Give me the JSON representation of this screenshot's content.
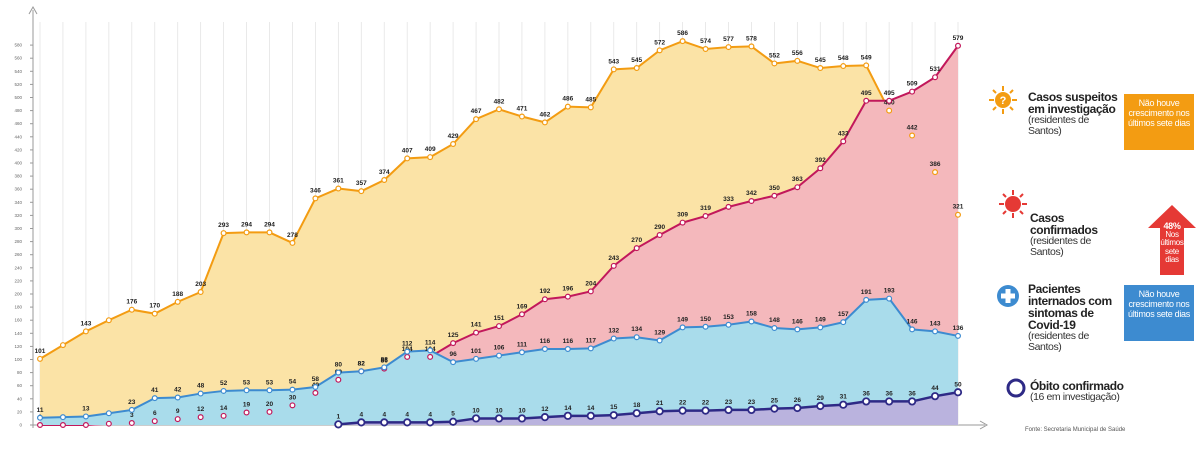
{
  "chart_data": {
    "type": "area",
    "categories": [
      null,
      null,
      null,
      null,
      null,
      null,
      null,
      null,
      null,
      null,
      null,
      null,
      null,
      null,
      null,
      null,
      null,
      null,
      null,
      null,
      null,
      null,
      null,
      null,
      null,
      null,
      null,
      null,
      null,
      null,
      null,
      null,
      null,
      null,
      null,
      null,
      null,
      null,
      null,
      null,
      null
    ],
    "ylim": [
      0,
      600
    ],
    "yticks": [
      0,
      20,
      40,
      60,
      80,
      100,
      120,
      140,
      160,
      180,
      200,
      220,
      240,
      260,
      280,
      300,
      320,
      340,
      360,
      380,
      400,
      420,
      440,
      460,
      480,
      500,
      520,
      540,
      560,
      580
    ],
    "series": [
      {
        "name": "Casos suspeitos em investigação",
        "note": "(residentes de Santos)",
        "badge": "Não houve crescimento nos últimos sete dias",
        "color": "#f39c12",
        "fill": "#fbe3a6",
        "values": [
          101,
          122,
          143,
          160,
          176,
          170,
          188,
          203,
          293,
          294,
          294,
          278,
          346,
          361,
          357,
          374,
          407,
          409,
          429,
          467,
          482,
          471,
          462,
          486,
          485,
          543,
          545,
          572,
          586,
          574,
          577,
          578,
          552,
          556,
          545,
          548,
          549,
          480,
          442,
          386,
          321
        ],
        "value_labels": [
          "101",
          null,
          "143",
          null,
          "176",
          "170",
          "188",
          "203",
          "293",
          "294",
          "294",
          "278",
          "346",
          "361",
          "357",
          "374",
          "407",
          "409",
          "429",
          "467",
          "482",
          "471",
          "462",
          "486",
          "485",
          "543",
          "545",
          "572",
          "586",
          "574",
          "577",
          "578",
          "552",
          "556",
          "545",
          "548",
          "549",
          "480",
          "442",
          "386",
          "321"
        ]
      },
      {
        "name": "Casos confirmados",
        "note": "(residentes de Santos)",
        "badge_value": "48%",
        "badge": "Nos últimos sete dias",
        "color": "#c2185b",
        "fill": "#f4b8bc",
        "values": [
          0,
          0,
          0,
          2,
          3,
          6,
          9,
          12,
          14,
          19,
          20,
          30,
          49,
          69,
          82,
          86,
          104,
          104,
          125,
          141,
          151,
          169,
          192,
          196,
          204,
          243,
          270,
          290,
          309,
          319,
          333,
          342,
          350,
          363,
          392,
          433,
          495,
          495,
          509,
          531,
          579
        ],
        "value_labels": [
          "0",
          null,
          "0",
          null,
          "3",
          "6",
          "9",
          "12",
          "14",
          "19",
          "20",
          "30",
          "49",
          "69",
          "82",
          "86",
          "104",
          "104",
          "125",
          "141",
          "151",
          "169",
          "192",
          "196",
          "204",
          "243",
          "270",
          "290",
          "309",
          "319",
          "333",
          "342",
          "350",
          "363",
          "392",
          "433",
          "495",
          "495",
          "509",
          "531",
          "579"
        ]
      },
      {
        "name": "Pacientes internados com sintomas de Covid-19",
        "note": "(residentes de Santos)",
        "badge": "Não houve crescimento nos últimos sete dias",
        "color": "#3d8bd0",
        "fill": "#a9dceb",
        "values": [
          11,
          12,
          13,
          18,
          23,
          41,
          42,
          48,
          52,
          53,
          53,
          54,
          58,
          80,
          82,
          88,
          112,
          114,
          96,
          101,
          106,
          111,
          116,
          116,
          117,
          132,
          134,
          129,
          149,
          150,
          153,
          158,
          148,
          146,
          149,
          157,
          191,
          193,
          146,
          143,
          136
        ],
        "value_labels": [
          "11",
          null,
          "13",
          null,
          "23",
          "41",
          "42",
          "48",
          "52",
          "53",
          "53",
          "54",
          "58",
          "80",
          "82",
          "88",
          "112",
          "114",
          "96",
          "101",
          "106",
          "111",
          "116",
          "116",
          "117",
          "132",
          "134",
          "129",
          "149",
          "150",
          "153",
          "158",
          "148",
          "146",
          "149",
          "157",
          "191",
          "193",
          "146",
          "143",
          "136"
        ]
      },
      {
        "name": "Óbito confirmado",
        "note": "(16 em investigação)",
        "color": "#2e2a86",
        "fill": "#bab3de",
        "values": [
          null,
          null,
          null,
          null,
          null,
          null,
          null,
          null,
          null,
          null,
          null,
          null,
          null,
          1,
          4,
          4,
          4,
          4,
          5,
          10,
          10,
          10,
          12,
          14,
          14,
          15,
          18,
          21,
          22,
          22,
          23,
          23,
          25,
          26,
          29,
          31,
          36,
          36,
          36,
          44,
          50
        ]
      }
    ],
    "source": "Fonte: Secretaria Municipal de Saúde"
  }
}
